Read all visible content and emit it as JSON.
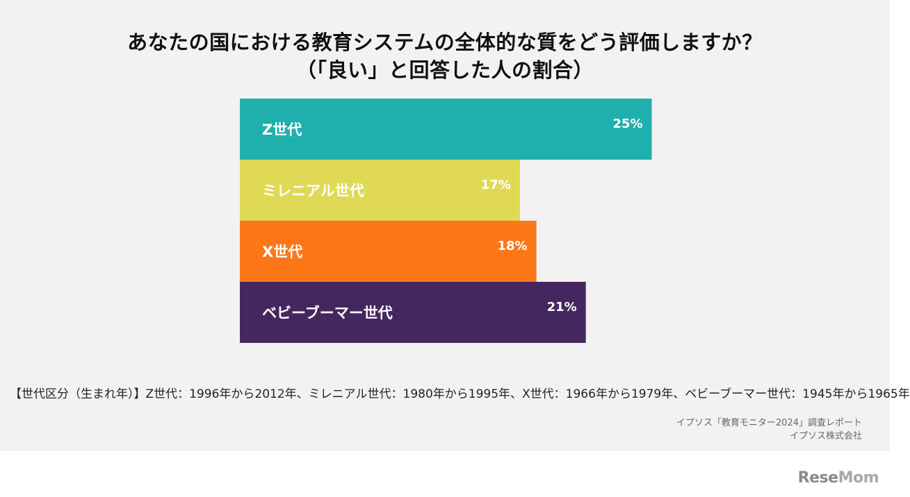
{
  "title_line1": "あなたの国における教育システムの全体的な質をどう評価しますか？",
  "title_line2": "（「良い」と回答した人の割合）",
  "chart_data": {
    "type": "bar",
    "orientation": "horizontal",
    "categories": [
      "Z世代",
      "ミレニアル世代",
      "X世代",
      "ベビーブーマー世代"
    ],
    "values": [
      25,
      17,
      18,
      21
    ],
    "value_labels": [
      "25%",
      "17%",
      "18%",
      "21%"
    ],
    "unit": "%",
    "colors": [
      "#1fb0ae",
      "#e0d955",
      "#fb7717",
      "#452760"
    ],
    "grid": false
  },
  "note": "【世代区分（生まれ年）】Z世代：1996年から2012年、ミレニアル世代：1980年から1995年、X世代：1966年から1979年、ベビーブーマー世代：1945年から1965年",
  "source_line1": "イプソス「教育モニター2024」調査レポート",
  "source_line2": "イプソス株式会社",
  "logo_part1": "Rese",
  "logo_part2": "Mom"
}
